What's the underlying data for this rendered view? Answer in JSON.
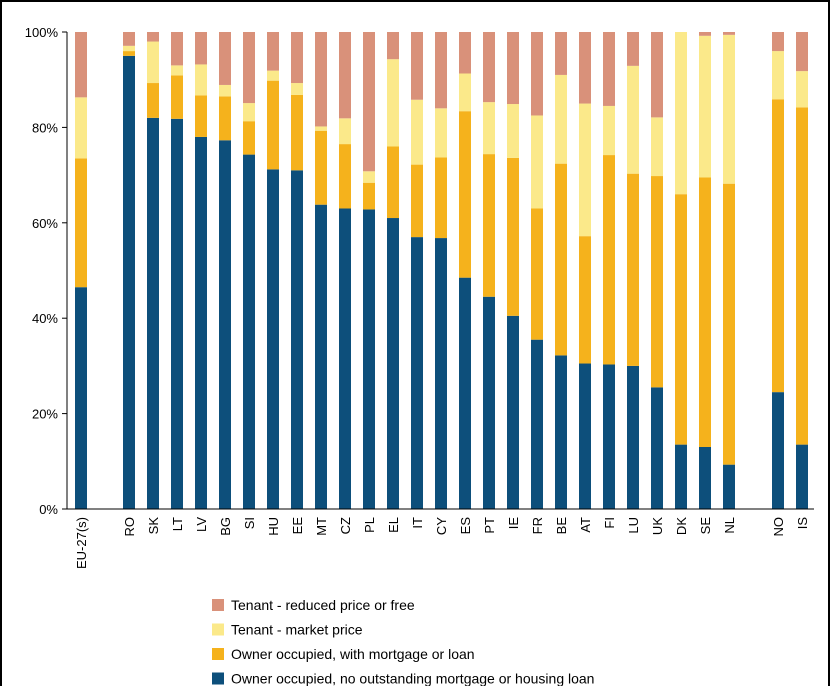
{
  "chart_data": {
    "type": "bar",
    "stacked": true,
    "stack_unit": "percent",
    "categories": [
      "EU-27(s)",
      "RO",
      "SK",
      "LT",
      "LV",
      "BG",
      "SI",
      "HU",
      "EE",
      "MT",
      "CZ",
      "PL",
      "EL",
      "IT",
      "CY",
      "ES",
      "PT",
      "IE",
      "FR",
      "BE",
      "AT",
      "FI",
      "LU",
      "UK",
      "DK",
      "SE",
      "NL",
      "NO",
      "IS"
    ],
    "category_groups": [
      [
        "EU-27(s)"
      ],
      [
        "RO",
        "SK",
        "LT",
        "LV",
        "BG",
        "SI",
        "HU",
        "EE",
        "MT",
        "CZ",
        "PL",
        "EL",
        "IT",
        "CY",
        "ES",
        "PT",
        "IE",
        "FR",
        "BE",
        "AT",
        "FI",
        "LU",
        "UK",
        "DK",
        "SE",
        "NL"
      ],
      [
        "NO",
        "IS"
      ]
    ],
    "series": [
      {
        "name": "Owner occupied, no outstanding mortgage or housing loan",
        "color": "#0d4f7b",
        "values": [
          46.5,
          95.0,
          82.0,
          81.8,
          78.0,
          77.3,
          74.3,
          71.2,
          71.0,
          63.8,
          63.0,
          62.8,
          61.0,
          57.0,
          56.8,
          48.5,
          44.5,
          40.5,
          35.5,
          32.2,
          30.5,
          30.3,
          30.0,
          25.5,
          13.5,
          13.0,
          9.3,
          24.5,
          13.5
        ]
      },
      {
        "name": "Owner occupied, with mortgage or loan",
        "color": "#f5b21c",
        "values": [
          27.0,
          1.0,
          7.3,
          9.1,
          8.7,
          9.2,
          7.0,
          18.6,
          15.8,
          15.5,
          13.5,
          5.6,
          15.0,
          15.2,
          16.9,
          34.9,
          29.9,
          33.1,
          27.5,
          40.2,
          26.7,
          43.9,
          40.3,
          44.3,
          52.5,
          56.5,
          58.9,
          61.4,
          70.7
        ]
      },
      {
        "name": "Tenant - market price",
        "color": "#fbe98a",
        "values": [
          12.8,
          1.1,
          8.7,
          2.1,
          6.5,
          2.4,
          3.8,
          2.1,
          2.5,
          0.9,
          5.4,
          2.4,
          18.3,
          13.6,
          10.3,
          7.9,
          10.9,
          11.3,
          19.5,
          18.6,
          27.8,
          10.3,
          22.6,
          12.3,
          34.0,
          29.7,
          31.2,
          10.1,
          7.6
        ]
      },
      {
        "name": "Tenant - reduced price or free",
        "color": "#d9917a",
        "values": [
          13.7,
          2.9,
          2.0,
          7.0,
          6.8,
          11.1,
          14.9,
          8.1,
          10.7,
          19.8,
          18.1,
          29.2,
          5.7,
          14.2,
          16.0,
          8.7,
          14.7,
          15.1,
          17.5,
          9.0,
          15.0,
          15.5,
          7.1,
          17.9,
          0.0,
          0.8,
          0.6,
          4.0,
          8.2
        ]
      }
    ],
    "y_ticks": [
      "0%",
      "20%",
      "40%",
      "60%",
      "80%",
      "100%"
    ],
    "ylim": [
      0,
      100
    ],
    "grid": false,
    "legend_position": "bottom",
    "legend_order": [
      "Tenant - reduced price or free",
      "Tenant - market price",
      "Owner occupied, with mortgage or loan",
      "Owner occupied, no outstanding mortgage or housing loan"
    ]
  }
}
